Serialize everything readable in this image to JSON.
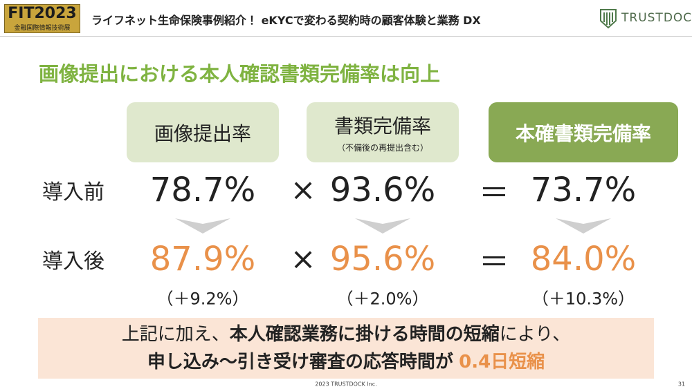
{
  "header": {
    "logo": "FIT2023",
    "logo_sub": "金融国際情報技術展",
    "title": "ライフネット生命保険事例紹介！ eKYCで変わる契約時の顧客体験と業務 DX",
    "brand": "TRUSTDOCK"
  },
  "heading": "画像提出における本人確認書類完備率は向上",
  "table": {
    "columns": [
      {
        "label": "画像提出率"
      },
      {
        "label": "書類完備率",
        "note": "（不備後の再提出含む）"
      },
      {
        "label": "本確書類完備率"
      }
    ],
    "rows": [
      {
        "label": "導入前",
        "values": [
          "78.7%",
          "93.6%",
          "73.7%"
        ]
      },
      {
        "label": "導入後",
        "values": [
          "87.9%",
          "95.6%",
          "84.0%"
        ]
      }
    ],
    "operators": [
      "×",
      "＝"
    ],
    "changes": [
      "（＋9.2%）",
      "（＋2.0%）",
      "（＋10.3%）"
    ]
  },
  "summary": {
    "line1": [
      "上記に加え、",
      "本人確認業務に掛ける時間の短縮",
      "により、"
    ],
    "line2": [
      "申し込み～引き受け審査の応答時間が",
      "0.4日短縮"
    ]
  },
  "footer": {
    "copyright": "2023 TRUSTDOCK Inc.",
    "page": "31"
  }
}
